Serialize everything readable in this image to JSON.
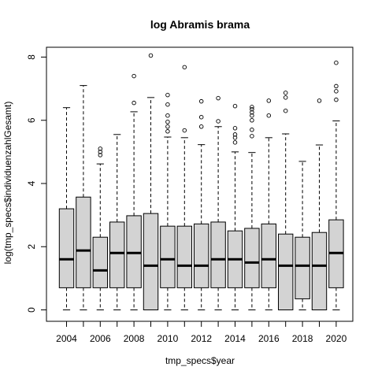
{
  "chart_data": {
    "type": "boxplot",
    "title": "log Abramis brama",
    "xlabel": "tmp_specs$year",
    "ylabel": "log(tmp_specs$individuenzahlGesamt)",
    "ylim": [
      0,
      8
    ],
    "y_ticks": [
      "0",
      "2",
      "4",
      "6",
      "8"
    ],
    "x_tick_labels_shown": [
      "2004",
      "2006",
      "2008",
      "2010",
      "2012",
      "2014",
      "2016",
      "2018",
      "2020"
    ],
    "categories": [
      "2004",
      "2005",
      "2006",
      "2007",
      "2008",
      "2009",
      "2010",
      "2011",
      "2012",
      "2013",
      "2014",
      "2015",
      "2016",
      "2017",
      "2018",
      "2019",
      "2020"
    ],
    "boxes": [
      {
        "year": "2004",
        "whisker_low": 0,
        "q1": 0.7,
        "median": 1.6,
        "q3": 3.2,
        "whisker_high": 6.4,
        "outliers": []
      },
      {
        "year": "2005",
        "whisker_low": 0,
        "q1": 0.7,
        "median": 1.88,
        "q3": 3.57,
        "whisker_high": 7.1,
        "outliers": []
      },
      {
        "year": "2006",
        "whisker_low": 0,
        "q1": 0.7,
        "median": 1.25,
        "q3": 2.3,
        "whisker_high": 4.62,
        "outliers": [
          4.9,
          5.0,
          5.1
        ]
      },
      {
        "year": "2007",
        "whisker_low": 0,
        "q1": 0.7,
        "median": 1.8,
        "q3": 2.78,
        "whisker_high": 5.55,
        "outliers": []
      },
      {
        "year": "2008",
        "whisker_low": 0,
        "q1": 0.7,
        "median": 1.8,
        "q3": 2.98,
        "whisker_high": 6.27,
        "outliers": [
          6.55,
          7.4
        ]
      },
      {
        "year": "2009",
        "whisker_low": 0,
        "q1": 0,
        "median": 1.4,
        "q3": 3.05,
        "whisker_high": 6.72,
        "outliers": [
          8.05
        ]
      },
      {
        "year": "2010",
        "whisker_low": 0,
        "q1": 0.7,
        "median": 1.6,
        "q3": 2.65,
        "whisker_high": 5.47,
        "outliers": [
          5.65,
          5.8,
          5.95,
          6.15,
          6.5,
          6.8
        ]
      },
      {
        "year": "2011",
        "whisker_low": 0,
        "q1": 0.7,
        "median": 1.4,
        "q3": 2.65,
        "whisker_high": 5.45,
        "outliers": [
          5.68,
          7.68
        ]
      },
      {
        "year": "2012",
        "whisker_low": 0,
        "q1": 0.7,
        "median": 1.4,
        "q3": 2.72,
        "whisker_high": 5.23,
        "outliers": [
          5.8,
          6.1,
          6.6
        ]
      },
      {
        "year": "2013",
        "whisker_low": 0,
        "q1": 0.7,
        "median": 1.6,
        "q3": 2.78,
        "whisker_high": 5.8,
        "outliers": [
          5.97,
          6.7
        ]
      },
      {
        "year": "2014",
        "whisker_low": 0,
        "q1": 0.7,
        "median": 1.6,
        "q3": 2.5,
        "whisker_high": 5.0,
        "outliers": [
          5.3,
          5.45,
          5.55,
          5.75,
          6.45
        ]
      },
      {
        "year": "2015",
        "whisker_low": 0,
        "q1": 0.7,
        "median": 1.5,
        "q3": 2.58,
        "whisker_high": 4.98,
        "outliers": [
          5.5,
          5.7,
          6.0,
          6.15,
          6.25,
          6.35,
          6.42
        ]
      },
      {
        "year": "2016",
        "whisker_low": 0,
        "q1": 0.7,
        "median": 1.6,
        "q3": 2.72,
        "whisker_high": 5.45,
        "outliers": [
          6.15,
          6.62
        ]
      },
      {
        "year": "2017",
        "whisker_low": 0,
        "q1": 0,
        "median": 1.4,
        "q3": 2.4,
        "whisker_high": 5.57,
        "outliers": [
          6.3,
          6.72,
          6.87
        ]
      },
      {
        "year": "2018",
        "whisker_low": 0,
        "q1": 0.35,
        "median": 1.4,
        "q3": 2.3,
        "whisker_high": 4.7,
        "outliers": []
      },
      {
        "year": "2019",
        "whisker_low": 0,
        "q1": 0,
        "median": 1.4,
        "q3": 2.45,
        "whisker_high": 5.22,
        "outliers": [
          6.62
        ]
      },
      {
        "year": "2020",
        "whisker_low": 0,
        "q1": 0.7,
        "median": 1.8,
        "q3": 2.85,
        "whisker_high": 5.98,
        "outliers": [
          6.65,
          6.92,
          7.08,
          7.82
        ]
      }
    ],
    "grid": false,
    "colors": {
      "box_fill": "#d3d3d3",
      "stroke": "#000000",
      "background": "#ffffff"
    }
  }
}
